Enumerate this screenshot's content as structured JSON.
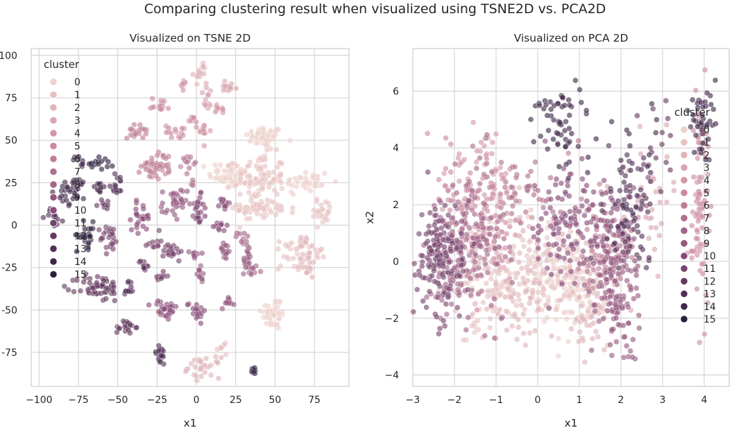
{
  "suptitle": "Comparing clustering result when visualized using TSNE2D vs. PCA2D",
  "colors": {
    "grid": "#cccccc",
    "spine": "#cccccc",
    "text": "#262626",
    "palette_light": "#edd1cb",
    "palette_dark": "#2d1e3e"
  },
  "chart_data": [
    {
      "type": "scatter",
      "title": "Visualized on TSNE 2D",
      "xlabel": "x1",
      "ylabel": "",
      "xlim": [
        -105,
        97
      ],
      "ylim": [
        -95,
        104
      ],
      "xticks": [
        -100,
        -75,
        -50,
        -25,
        0,
        25,
        50,
        75
      ],
      "xtick_labels": [
        "−100",
        "−75",
        "−50",
        "−25",
        "0",
        "25",
        "50",
        "75"
      ],
      "yticks": [
        -75,
        -50,
        -25,
        0,
        25,
        50,
        75,
        100
      ],
      "ytick_labels": [
        "-75",
        "-50",
        "-25",
        "0",
        "25",
        "50",
        "75",
        "100"
      ],
      "grid": true,
      "legend": {
        "title": "cluster",
        "placement": "upper-left",
        "entries": [
          "0",
          "1",
          "2",
          "3",
          "4",
          "5",
          "6",
          "7",
          "8",
          "9",
          "10",
          "11",
          "12",
          "13",
          "14",
          "15"
        ]
      },
      "hue": "cluster",
      "clusters": [
        {
          "x": 43,
          "y": 52,
          "sx": 6,
          "sy": 3,
          "n": 50,
          "c": 0
        },
        {
          "x": 20,
          "y": 30,
          "sx": 6,
          "sy": 4,
          "n": 45,
          "c": 0
        },
        {
          "x": 40,
          "y": 28,
          "sx": 8,
          "sy": 7,
          "n": 90,
          "c": 1
        },
        {
          "x": 38,
          "y": 10,
          "sx": 6,
          "sy": 4,
          "n": 45,
          "c": 1
        },
        {
          "x": 70,
          "y": 25,
          "sx": 8,
          "sy": 4,
          "n": 35,
          "c": 0
        },
        {
          "x": 80,
          "y": 8,
          "sx": 4,
          "sy": 4,
          "n": 25,
          "c": 1
        },
        {
          "x": 55,
          "y": 10,
          "sx": 4,
          "sy": 2,
          "n": 12,
          "c": 1
        },
        {
          "x": 49,
          "y": -52,
          "sx": 4,
          "sy": 5,
          "n": 40,
          "c": 0
        },
        {
          "x": 60,
          "y": -17,
          "sx": 5,
          "sy": 5,
          "n": 25,
          "c": 1
        },
        {
          "x": 70,
          "y": -23,
          "sx": 3,
          "sy": 5,
          "n": 20,
          "c": 2
        },
        {
          "x": 68,
          "y": -10,
          "sx": 2,
          "sy": 2,
          "n": 8,
          "c": 2
        },
        {
          "x": 77,
          "y": -17,
          "sx": 2,
          "sy": 2,
          "n": 8,
          "c": 1
        },
        {
          "x": 2,
          "y": 90,
          "sx": 2,
          "sy": 3,
          "n": 15,
          "c": 2
        },
        {
          "x": 7,
          "y": 75,
          "sx": 2,
          "sy": 4,
          "n": 15,
          "c": 3
        },
        {
          "x": 20,
          "y": 81,
          "sx": 3,
          "sy": 2,
          "n": 14,
          "c": 3
        },
        {
          "x": -8,
          "y": 82,
          "sx": 1.5,
          "sy": 1.5,
          "n": 8,
          "c": 4
        },
        {
          "x": -23,
          "y": 71,
          "sx": 3,
          "sy": 2,
          "n": 15,
          "c": 5
        },
        {
          "x": 15,
          "y": 68,
          "sx": 2,
          "sy": 2,
          "n": 10,
          "c": 4
        },
        {
          "x": -38,
          "y": 55,
          "sx": 3,
          "sy": 2,
          "n": 18,
          "c": 6
        },
        {
          "x": -12,
          "y": 55,
          "sx": 4,
          "sy": 2,
          "n": 15,
          "c": 5
        },
        {
          "x": 5,
          "y": 55,
          "sx": 2,
          "sy": 3,
          "n": 12,
          "c": 4
        },
        {
          "x": -3,
          "y": 62,
          "sx": 1.5,
          "sy": 1.5,
          "n": 6,
          "c": 5
        },
        {
          "x": -25,
          "y": 35,
          "sx": 5,
          "sy": 4,
          "n": 50,
          "c": 6
        },
        {
          "x": -5,
          "y": 38,
          "sx": 2,
          "sy": 2,
          "n": 10,
          "c": 7
        },
        {
          "x": -2,
          "y": 25,
          "sx": 1,
          "sy": 1,
          "n": 4,
          "c": 7
        },
        {
          "x": -14,
          "y": 12,
          "sx": 4,
          "sy": 5,
          "n": 35,
          "c": 9
        },
        {
          "x": -35,
          "y": 5,
          "sx": 3,
          "sy": 4,
          "n": 25,
          "c": 10
        },
        {
          "x": 1,
          "y": 12,
          "sx": 2,
          "sy": 3,
          "n": 15,
          "c": 10
        },
        {
          "x": 1,
          "y": 4,
          "sx": 2,
          "sy": 2,
          "n": 10,
          "c": 11
        },
        {
          "x": 17,
          "y": 11,
          "sx": 2,
          "sy": 3,
          "n": 12,
          "c": 10
        },
        {
          "x": 15,
          "y": 0,
          "sx": 2,
          "sy": 2,
          "n": 10,
          "c": 10
        },
        {
          "x": -15,
          "y": -15,
          "sx": 3,
          "sy": 3,
          "n": 20,
          "c": 11
        },
        {
          "x": -27,
          "y": -10,
          "sx": 2,
          "sy": 2,
          "n": 10,
          "c": 11
        },
        {
          "x": 0,
          "y": -18,
          "sx": 2,
          "sy": 2,
          "n": 10,
          "c": 9
        },
        {
          "x": 18,
          "y": -15,
          "sx": 2,
          "sy": 3,
          "n": 15,
          "c": 9
        },
        {
          "x": 32,
          "y": -20,
          "sx": 2,
          "sy": 3,
          "n": 15,
          "c": 9
        },
        {
          "x": 35,
          "y": -27,
          "sx": 2,
          "sy": 2,
          "n": 10,
          "c": 8
        },
        {
          "x": 30,
          "y": -8,
          "sx": 2,
          "sy": 2,
          "n": 10,
          "c": 8
        },
        {
          "x": -33,
          "y": -23,
          "sx": 2,
          "sy": 2,
          "n": 12,
          "c": 12
        },
        {
          "x": -22,
          "y": -30,
          "sx": 2,
          "sy": 2,
          "n": 10,
          "c": 11
        },
        {
          "x": 3,
          "y": -30,
          "sx": 2,
          "sy": 2,
          "n": 10,
          "c": 9
        },
        {
          "x": -20,
          "y": -50,
          "sx": 4,
          "sy": 3,
          "n": 30,
          "c": 10
        },
        {
          "x": 0,
          "y": -50,
          "sx": 3,
          "sy": 3,
          "n": 18,
          "c": 10
        },
        {
          "x": 20,
          "y": -45,
          "sx": 2,
          "sy": 2,
          "n": 12,
          "c": 9
        },
        {
          "x": -45,
          "y": -60,
          "sx": 3,
          "sy": 2,
          "n": 20,
          "c": 12
        },
        {
          "x": -23,
          "y": -77,
          "sx": 2,
          "sy": 3,
          "n": 20,
          "c": 13
        },
        {
          "x": 5,
          "y": -84,
          "sx": 5,
          "sy": 3,
          "n": 30,
          "c": 2
        },
        {
          "x": 17,
          "y": -72,
          "sx": 2,
          "sy": 1.5,
          "n": 8,
          "c": 1
        },
        {
          "x": 36,
          "y": -85,
          "sx": 1.5,
          "sy": 1.5,
          "n": 8,
          "c": 15
        },
        {
          "x": -60,
          "y": 37,
          "sx": 4,
          "sy": 2,
          "n": 15,
          "c": 15
        },
        {
          "x": -75,
          "y": 37,
          "sx": 2,
          "sy": 2,
          "n": 8,
          "c": 14
        },
        {
          "x": -78,
          "y": 20,
          "sx": 5,
          "sy": 4,
          "n": 35,
          "c": 14
        },
        {
          "x": -50,
          "y": 24,
          "sx": 3,
          "sy": 3,
          "n": 15,
          "c": 13
        },
        {
          "x": -62,
          "y": 22,
          "sx": 2,
          "sy": 2,
          "n": 10,
          "c": 14
        },
        {
          "x": -58,
          "y": 12,
          "sx": 2,
          "sy": 2,
          "n": 8,
          "c": 12
        },
        {
          "x": -70,
          "y": -6,
          "sx": 3,
          "sy": 4,
          "n": 25,
          "c": 15
        },
        {
          "x": -55,
          "y": -8,
          "sx": 3,
          "sy": 4,
          "n": 25,
          "c": 11
        },
        {
          "x": -90,
          "y": 5,
          "sx": 3,
          "sy": 3,
          "n": 12,
          "c": 13
        },
        {
          "x": -62,
          "y": -37,
          "sx": 7,
          "sy": 4,
          "n": 55,
          "c": 12
        },
        {
          "x": -43,
          "y": -37,
          "sx": 2,
          "sy": 3,
          "n": 12,
          "c": 13
        }
      ]
    },
    {
      "type": "scatter",
      "title": "Visualized on PCA 2D",
      "xlabel": "x1",
      "ylabel": "x2",
      "xlim": [
        -3.0,
        4.6
      ],
      "ylim": [
        -4.4,
        7.5
      ],
      "xticks": [
        -3,
        -2,
        -1,
        0,
        1,
        2,
        3,
        4
      ],
      "xtick_labels": [
        "−3",
        "−2",
        "−1",
        "0",
        "1",
        "2",
        "3",
        "4"
      ],
      "yticks": [
        -4,
        -2,
        0,
        2,
        4,
        6
      ],
      "ytick_labels": [
        "−4",
        "−2",
        "0",
        "2",
        "4",
        "6"
      ],
      "grid": true,
      "legend": {
        "title": "cluster",
        "placement": "right",
        "entries": [
          "0",
          "1",
          "2",
          "3",
          "4",
          "5",
          "6",
          "7",
          "8",
          "9",
          "10",
          "11",
          "12",
          "13",
          "14",
          "15"
        ]
      },
      "hue": "cluster",
      "clusters": [
        {
          "x": -2.3,
          "y": 0.2,
          "sx": 0.3,
          "sy": 1.1,
          "n": 150,
          "c": 11
        },
        {
          "x": -1.7,
          "y": 0.6,
          "sx": 0.45,
          "sy": 1.3,
          "n": 180,
          "c": 8
        },
        {
          "x": -1.4,
          "y": 1.5,
          "sx": 0.5,
          "sy": 1.1,
          "n": 120,
          "c": 5
        },
        {
          "x": -1.3,
          "y": -0.8,
          "sx": 0.5,
          "sy": 0.9,
          "n": 100,
          "c": 1
        },
        {
          "x": -0.5,
          "y": -0.8,
          "sx": 0.4,
          "sy": 1.0,
          "n": 90,
          "c": 2
        },
        {
          "x": 0.2,
          "y": -0.3,
          "sx": 0.4,
          "sy": 1.0,
          "n": 100,
          "c": 1
        },
        {
          "x": 0.8,
          "y": -0.5,
          "sx": 0.4,
          "sy": 1.0,
          "n": 110,
          "c": 0
        },
        {
          "x": 1.3,
          "y": -1.2,
          "sx": 0.3,
          "sy": 1.0,
          "n": 80,
          "c": 2
        },
        {
          "x": 1.9,
          "y": -0.8,
          "sx": 0.3,
          "sy": 1.3,
          "n": 150,
          "c": 9
        },
        {
          "x": 0.9,
          "y": 1.3,
          "sx": 0.7,
          "sy": 1.0,
          "n": 140,
          "c": 10
        },
        {
          "x": 2.2,
          "y": 1.8,
          "sx": 0.4,
          "sy": 1.0,
          "n": 80,
          "c": 13
        },
        {
          "x": 1.6,
          "y": 0.8,
          "sx": 0.4,
          "sy": 1.0,
          "n": 80,
          "c": 6
        },
        {
          "x": 0.6,
          "y": 4.8,
          "sx": 0.35,
          "sy": 0.9,
          "n": 60,
          "c": 14
        },
        {
          "x": 3.9,
          "y": 2.5,
          "sx": 0.12,
          "sy": 1.9,
          "n": 90,
          "c": 5
        },
        {
          "x": 4.0,
          "y": 4.8,
          "sx": 0.15,
          "sy": 0.7,
          "n": 40,
          "c": 14
        },
        {
          "x": 2.6,
          "y": 1.8,
          "sx": 0.35,
          "sy": 1.3,
          "n": 40,
          "c": 3
        },
        {
          "x": -1.5,
          "y": 3.3,
          "sx": 0.4,
          "sy": 0.6,
          "n": 40,
          "c": 4
        },
        {
          "x": -0.4,
          "y": 2.6,
          "sx": 0.6,
          "sy": 0.8,
          "n": 60,
          "c": 7
        },
        {
          "x": 2.4,
          "y": 4.5,
          "sx": 0.3,
          "sy": 0.6,
          "n": 12,
          "c": 14
        },
        {
          "x": 3.0,
          "y": 4.2,
          "sx": 0.3,
          "sy": 0.8,
          "n": 15,
          "c": 12
        }
      ]
    }
  ]
}
